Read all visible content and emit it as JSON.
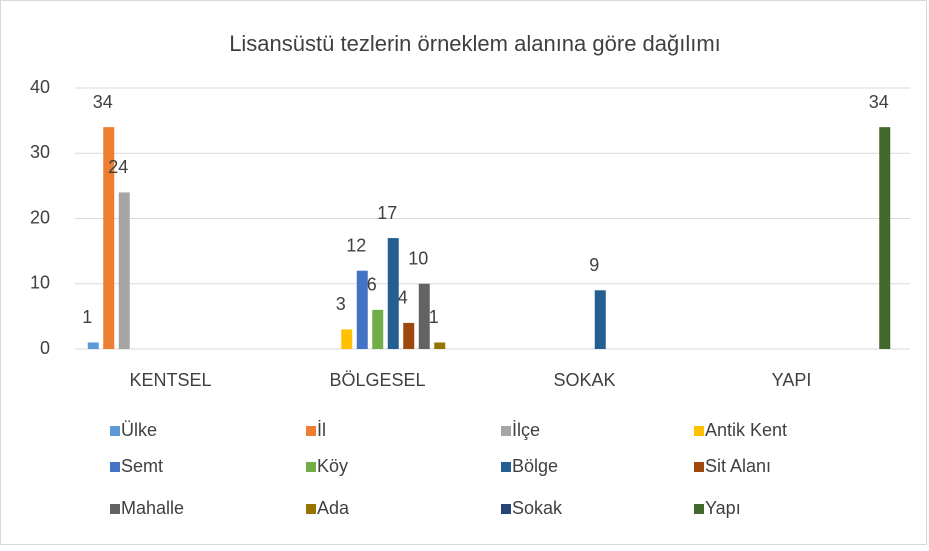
{
  "chart_data": {
    "type": "bar",
    "title": "Lisansüstü tezlerin örneklem alanına göre dağılımı",
    "categories": [
      "KENTSEL",
      "BÖLGESEL",
      "SOKAK",
      "YAPI"
    ],
    "series": [
      {
        "name": "Ülke",
        "color": "#5b9bd5",
        "values": [
          1,
          null,
          null,
          null
        ]
      },
      {
        "name": "İl",
        "color": "#ed7d31",
        "values": [
          34,
          null,
          null,
          null
        ]
      },
      {
        "name": "İlçe",
        "color": "#a5a5a5",
        "values": [
          24,
          null,
          null,
          null
        ]
      },
      {
        "name": "Antik Kent",
        "color": "#ffc000",
        "values": [
          null,
          3,
          null,
          null
        ]
      },
      {
        "name": "Semt",
        "color": "#4472c4",
        "values": [
          null,
          12,
          null,
          null
        ]
      },
      {
        "name": "Köy",
        "color": "#70ad47",
        "values": [
          null,
          6,
          null,
          null
        ]
      },
      {
        "name": "Bölge",
        "color": "#255e91",
        "values": [
          null,
          17,
          9,
          null
        ]
      },
      {
        "name": "Sit Alanı",
        "color": "#9e480e",
        "values": [
          null,
          4,
          null,
          null
        ]
      },
      {
        "name": "Mahalle",
        "color": "#636363",
        "values": [
          null,
          10,
          null,
          null
        ]
      },
      {
        "name": "Ada",
        "color": "#997300",
        "values": [
          null,
          1,
          null,
          null
        ]
      },
      {
        "name": "Sokak",
        "color": "#264478",
        "values": [
          null,
          null,
          null,
          null
        ]
      },
      {
        "name": "Yapı",
        "color": "#43682b",
        "values": [
          null,
          null,
          null,
          34
        ]
      }
    ],
    "ylim": [
      0,
      40
    ],
    "yticks": [
      0,
      10,
      20,
      30,
      40
    ],
    "grid": true
  }
}
